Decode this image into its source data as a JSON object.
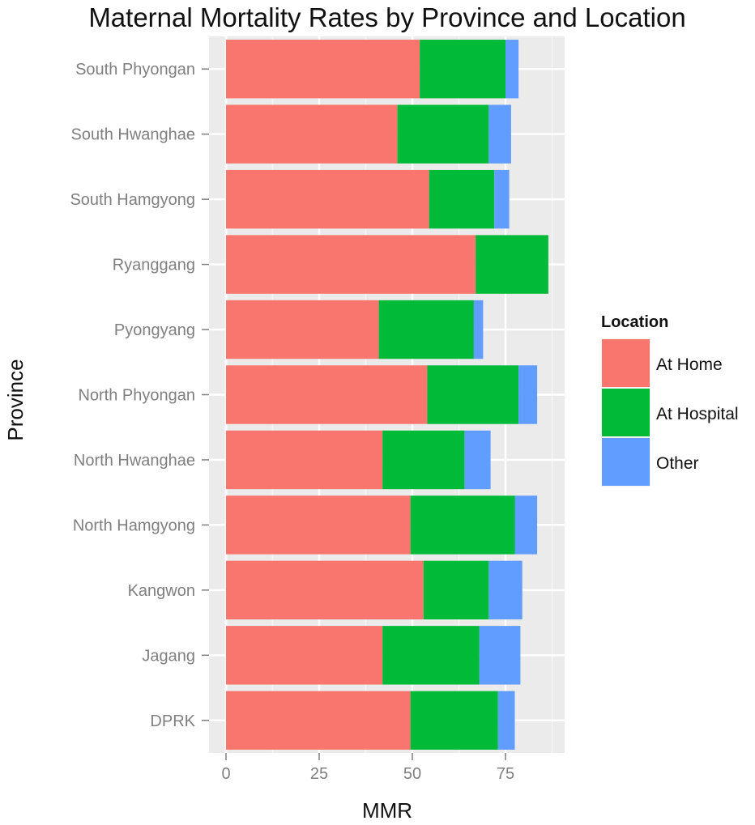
{
  "chart_data": {
    "type": "bar",
    "orientation": "horizontal",
    "stacked": true,
    "title": "Maternal Mortality Rates by Province and Location",
    "xlabel": "MMR",
    "ylabel": "Province",
    "categories": [
      "South Phyongan",
      "South Hwanghae",
      "South Hamgyong",
      "Ryanggang",
      "Pyongyang",
      "North Phyongan",
      "North Hwanghae",
      "North Hamgyong",
      "Kangwon",
      "Jagang",
      "DPRK"
    ],
    "series": [
      {
        "name": "At Home",
        "color": "#F8766D",
        "values": [
          52,
          46,
          54.5,
          67,
          41,
          54,
          42,
          49.5,
          53,
          42,
          49.5
        ]
      },
      {
        "name": "At Hospital",
        "color": "#00BA38",
        "values": [
          23,
          24.5,
          17.5,
          19.5,
          25.5,
          24.5,
          22,
          28,
          17.5,
          26,
          23.5
        ]
      },
      {
        "name": "Other",
        "color": "#619CFF",
        "values": [
          3.5,
          6,
          4,
          0,
          2.5,
          5,
          7,
          6,
          9,
          11,
          4.5
        ]
      }
    ],
    "xlim": [
      0,
      90
    ],
    "xticks": [
      "0",
      "25",
      "50",
      "75"
    ],
    "grid": true,
    "legend": {
      "title": "Location",
      "position": "right"
    }
  }
}
